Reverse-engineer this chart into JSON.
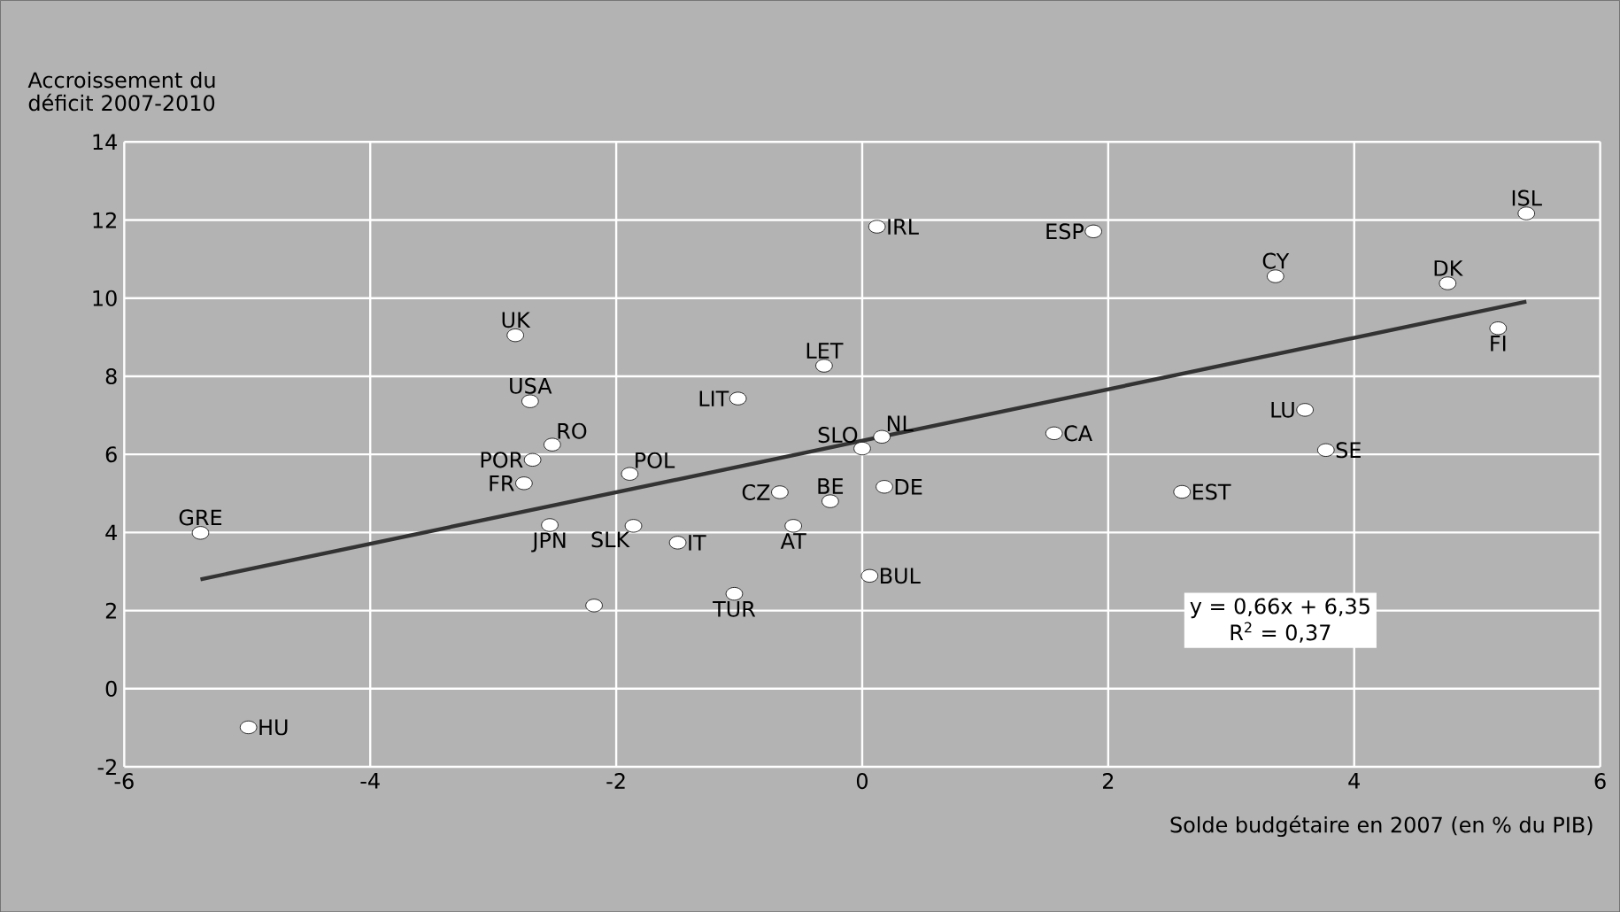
{
  "chart_data": {
    "type": "scatter",
    "xlabel": "Solde budgétaire en 2007 (en % du PIB)",
    "ylabel": "Accroissement du déficit 2007-2010",
    "xlim": [
      -6,
      6
    ],
    "xticks": [
      -6,
      -4,
      -2,
      0,
      2,
      4,
      6
    ],
    "ylim": [
      -2,
      14
    ],
    "yticks": [
      -2,
      0,
      2,
      4,
      6,
      8,
      10,
      12,
      14
    ],
    "grid": true,
    "series": [
      {
        "color": "#ffffff",
        "marker": "circle",
        "x": [
          -5.38,
          -4.99,
          -2.82,
          -2.7,
          -2.52,
          -2.68,
          -2.75,
          -2.54,
          -2.18,
          -1.89,
          -1.86,
          -1.5,
          -1.04,
          -1.01,
          -0.67,
          -0.56,
          -0.26,
          -0.31,
          0.0,
          0.16,
          0.12,
          1.88,
          0.18,
          0.06,
          1.56,
          2.6,
          3.36,
          3.6,
          3.77,
          4.76,
          5.17,
          5.4
        ],
        "values": [
          3.99,
          -0.99,
          9.05,
          7.36,
          6.25,
          5.86,
          5.26,
          4.19,
          2.13,
          5.5,
          4.17,
          3.74,
          2.43,
          7.43,
          5.03,
          4.17,
          4.8,
          8.27,
          6.15,
          6.45,
          11.83,
          11.71,
          5.17,
          2.89,
          6.54,
          5.04,
          10.56,
          7.14,
          6.11,
          10.38,
          9.23,
          12.17
        ]
      },
      {
        "type": "line",
        "color": "#333333",
        "marker": "none",
        "line_style": "solid",
        "x": [
          -5.38,
          5.4
        ],
        "values": [
          2.8,
          9.91
        ]
      }
    ],
    "annotations": [
      {
        "text": "GRE",
        "x": -5.38,
        "y": 3.99
      },
      {
        "text": "HU",
        "x": -4.99,
        "y": -0.99
      },
      {
        "text": "UK",
        "x": -2.82,
        "y": 9.05
      },
      {
        "text": "USA",
        "x": -2.7,
        "y": 7.36
      },
      {
        "text": "RO",
        "x": -2.52,
        "y": 6.25
      },
      {
        "text": "POR",
        "x": -2.68,
        "y": 5.86
      },
      {
        "text": "FR",
        "x": -2.75,
        "y": 5.26
      },
      {
        "text": "JPN",
        "x": -2.54,
        "y": 4.19
      },
      {
        "text": "POL",
        "x": -1.89,
        "y": 5.5
      },
      {
        "text": "SLK",
        "x": -1.86,
        "y": 4.17
      },
      {
        "text": "IT",
        "x": -1.5,
        "y": 3.74
      },
      {
        "text": "TUR",
        "x": -1.04,
        "y": 2.43
      },
      {
        "text": "LIT",
        "x": -1.01,
        "y": 7.43
      },
      {
        "text": "CZ",
        "x": -0.67,
        "y": 5.03
      },
      {
        "text": "AT",
        "x": -0.56,
        "y": 4.17
      },
      {
        "text": "BE",
        "x": -0.26,
        "y": 4.8
      },
      {
        "text": "LET",
        "x": -0.31,
        "y": 8.27
      },
      {
        "text": "SLO",
        "x": 0.0,
        "y": 6.15
      },
      {
        "text": "NL",
        "x": 0.16,
        "y": 6.45
      },
      {
        "text": "IRL",
        "x": 0.12,
        "y": 11.83
      },
      {
        "text": "ESP",
        "x": 1.88,
        "y": 11.71
      },
      {
        "text": "DE",
        "x": 0.18,
        "y": 5.17
      },
      {
        "text": "BUL",
        "x": 0.06,
        "y": 2.89
      },
      {
        "text": "CA",
        "x": 1.56,
        "y": 6.54
      },
      {
        "text": "EST",
        "x": 2.6,
        "y": 5.04
      },
      {
        "text": "CY",
        "x": 3.36,
        "y": 10.56
      },
      {
        "text": "LU",
        "x": 3.6,
        "y": 7.14
      },
      {
        "text": "SE",
        "x": 3.77,
        "y": 6.11
      },
      {
        "text": "DK",
        "x": 4.76,
        "y": 10.38
      },
      {
        "text": "FI",
        "x": 5.17,
        "y": 9.23
      },
      {
        "text": "ISL",
        "x": 5.4,
        "y": 12.17
      },
      "y = 0,66x + 6,35",
      "R$^{2}$ = 0,37"
    ]
  }
}
